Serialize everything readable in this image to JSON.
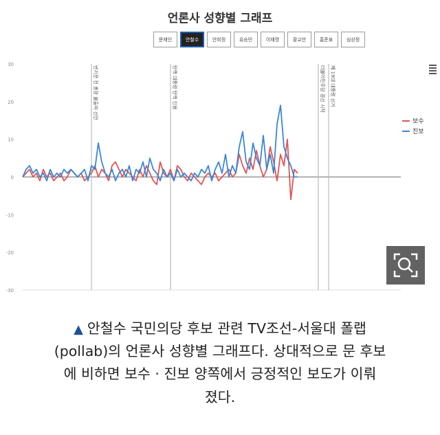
{
  "chart_data": {
    "type": "line",
    "title": "언론사 성향별 그래프",
    "tabs": [
      "문재인",
      "안철수",
      "안희정",
      "유승민",
      "이재명",
      "황교안",
      "홍준표",
      "심상정"
    ],
    "active_tab": "안철수",
    "xlabel": "",
    "ylabel": "",
    "ylim": [
      -30,
      30
    ],
    "y_ticks": [
      30,
      20,
      10,
      0,
      -10,
      -20,
      -30
    ],
    "xlim": [
      0,
      110
    ],
    "grid": false,
    "legend_position": "right",
    "series": [
      {
        "name": "보수",
        "color": "#e05555",
        "x": [
          0,
          1,
          2,
          3,
          4,
          5,
          6,
          7,
          8,
          9,
          10,
          11,
          12,
          13,
          14,
          15,
          16,
          17,
          18,
          19,
          20,
          21,
          22,
          23,
          24,
          25,
          26,
          27,
          28,
          29,
          30,
          31,
          32,
          33,
          34,
          35,
          36,
          37,
          38,
          39,
          40,
          41,
          42,
          43,
          44,
          45,
          46,
          47,
          48,
          49,
          50,
          51,
          52,
          53,
          54,
          55,
          56,
          57,
          58,
          59,
          60,
          61,
          62,
          63,
          64,
          65,
          66,
          67,
          68,
          69,
          70,
          71,
          72,
          73,
          74,
          75,
          76,
          77,
          78,
          79,
          80
        ],
        "values": [
          0,
          1,
          2,
          0,
          1,
          -1,
          2,
          0,
          1,
          -1,
          0,
          1,
          -1,
          0,
          2,
          1,
          0,
          1,
          -1,
          0,
          1,
          3,
          0,
          2,
          1,
          -1,
          3,
          4,
          2,
          0,
          2,
          1,
          0,
          -1,
          2,
          0,
          3,
          1,
          -1,
          -2,
          4,
          1,
          0,
          2,
          -1,
          3,
          2,
          0,
          -1,
          1,
          0,
          -1,
          -2,
          0,
          1,
          0,
          1,
          -1,
          0,
          1,
          2,
          0,
          1,
          6,
          3,
          1,
          5,
          2,
          7,
          3,
          0,
          2,
          8,
          4,
          -1,
          6,
          3,
          10,
          -6,
          2,
          1
        ]
      },
      {
        "name": "진보",
        "color": "#3a86d6",
        "x": [
          0,
          1,
          2,
          3,
          4,
          5,
          6,
          7,
          8,
          9,
          10,
          11,
          12,
          13,
          14,
          15,
          16,
          17,
          18,
          19,
          20,
          21,
          22,
          23,
          24,
          25,
          26,
          27,
          28,
          29,
          30,
          31,
          32,
          33,
          34,
          35,
          36,
          37,
          38,
          39,
          40,
          41,
          42,
          43,
          44,
          45,
          46,
          47,
          48,
          49,
          50,
          51,
          52,
          53,
          54,
          55,
          56,
          57,
          58,
          59,
          60,
          61,
          62,
          63,
          64,
          65,
          66,
          67,
          68,
          69,
          70,
          71,
          72,
          73,
          74,
          75,
          76,
          77,
          78,
          79,
          80
        ],
        "values": [
          0,
          2,
          3,
          1,
          2,
          0,
          1,
          -1,
          2,
          0,
          1,
          0,
          2,
          1,
          2,
          1,
          0,
          1,
          2,
          -1,
          3,
          2,
          9,
          4,
          1,
          0,
          2,
          -1,
          1,
          2,
          0,
          3,
          -1,
          2,
          1,
          4,
          0,
          5,
          2,
          1,
          -1,
          2,
          0,
          1,
          -1,
          2,
          0,
          1,
          0,
          -1,
          1,
          0,
          2,
          1,
          3,
          -1,
          2,
          4,
          1,
          6,
          0,
          3,
          1,
          8,
          12,
          4,
          2,
          9,
          5,
          3,
          11,
          2,
          6,
          1,
          14,
          19,
          8,
          5,
          3,
          0,
          0
        ]
      }
    ],
    "annotations": [
      {
        "x": 20,
        "label": "반기문 전 총장 불출마 선언"
      },
      {
        "x": 43,
        "label": "탄핵 대통령 탄핵 인용"
      },
      {
        "x": 86,
        "label": "더불어민주당 경선 시작"
      },
      {
        "x": 89,
        "label": "제 19대 대통령 선거"
      }
    ]
  },
  "caption": {
    "triangle": "▲",
    "lines": [
      "안철수 국민의당 후보 관련 TV조선-서울대 폴랩",
      "(pollab)의 언론사 성향별 그래프다. 상대적으로 문 후보",
      "에 비하면 보수 · 진보 양쪽에서 긍정적인 보도가 이뤄",
      "졌다."
    ]
  },
  "icons": {
    "zoom": "zoom-magnifier-icon",
    "menu": "hamburger-menu-icon"
  }
}
